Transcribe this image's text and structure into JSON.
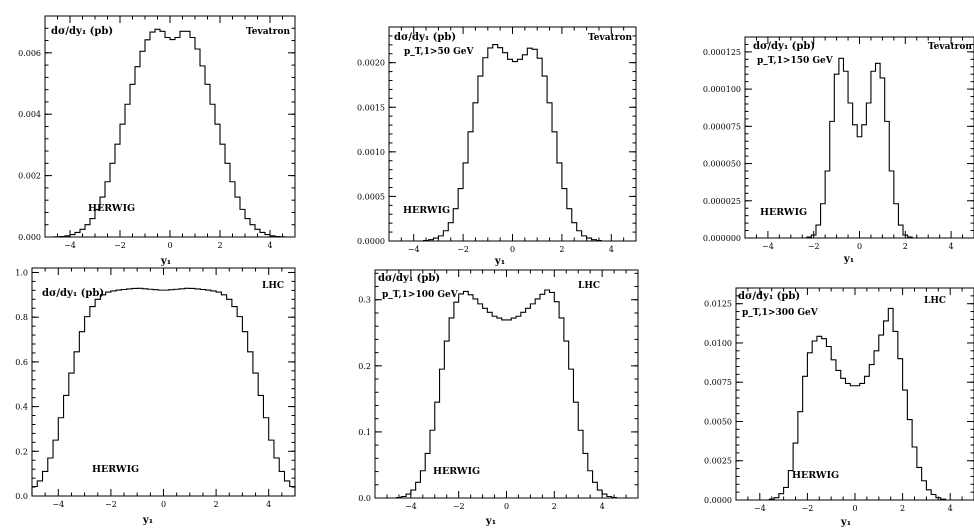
{
  "chart_data": [
    {
      "type": "line",
      "title": "dσ/dy₁ (pb)",
      "corner_label": "Tevatron",
      "cut_label": "",
      "generator_label": "HERWIG",
      "xlabel": "y₁",
      "xlim": [
        -5,
        5
      ],
      "ylim": [
        0,
        0.0072
      ],
      "xticks": [
        -4,
        -2,
        0,
        2,
        4
      ],
      "yticks": [
        0,
        0.002,
        0.004,
        0.006
      ],
      "ytick_labels": [
        "0.000",
        "0.002",
        "0.004",
        "0.006"
      ],
      "profile": [
        [
          -4.6,
          0
        ],
        [
          -4.2,
          2e-05
        ],
        [
          -3.8,
          0.0001
        ],
        [
          -3.4,
          0.0003
        ],
        [
          -3.0,
          0.0007
        ],
        [
          -2.6,
          0.0015
        ],
        [
          -2.2,
          0.0027
        ],
        [
          -1.8,
          0.004
        ],
        [
          -1.4,
          0.0053
        ],
        [
          -1.0,
          0.0063
        ],
        [
          -0.6,
          0.0068
        ],
        [
          -0.3,
          0.0067
        ],
        [
          0,
          0.0064
        ],
        [
          0.3,
          0.0065
        ],
        [
          0.6,
          0.0068
        ],
        [
          1.0,
          0.0064
        ],
        [
          1.4,
          0.0053
        ],
        [
          1.8,
          0.004
        ],
        [
          2.2,
          0.0027
        ],
        [
          2.6,
          0.0015
        ],
        [
          3.0,
          0.0007
        ],
        [
          3.4,
          0.0003
        ],
        [
          3.8,
          0.0001
        ],
        [
          4.2,
          2e-05
        ],
        [
          4.6,
          0
        ]
      ]
    },
    {
      "type": "line",
      "title": "dσ/dy₁ (pb)",
      "corner_label": "Tevatron",
      "cut_label": "p_T,1>50 GeV",
      "generator_label": "HERWIG",
      "xlabel": "y₁",
      "xlim": [
        -5,
        5
      ],
      "ylim": [
        0,
        0.0024
      ],
      "xticks": [
        -4,
        -2,
        0,
        2,
        4
      ],
      "yticks": [
        0,
        0.0005,
        0.001,
        0.0015,
        0.002
      ],
      "ytick_labels": [
        "0.0000",
        "0.0005",
        "0.0010",
        "0.0015",
        "0.0020"
      ],
      "profile": [
        [
          -3.6,
          0
        ],
        [
          -3.2,
          2e-05
        ],
        [
          -2.8,
          7e-05
        ],
        [
          -2.4,
          0.00025
        ],
        [
          -2.0,
          0.0007
        ],
        [
          -1.6,
          0.0014
        ],
        [
          -1.2,
          0.002
        ],
        [
          -0.8,
          0.00222
        ],
        [
          -0.4,
          0.00215
        ],
        [
          0,
          0.002
        ],
        [
          0.4,
          0.00205
        ],
        [
          0.8,
          0.0022
        ],
        [
          1.2,
          0.002
        ],
        [
          1.6,
          0.0014
        ],
        [
          2.0,
          0.0007
        ],
        [
          2.4,
          0.00025
        ],
        [
          2.8,
          7e-05
        ],
        [
          3.2,
          2e-05
        ],
        [
          3.6,
          0
        ]
      ]
    },
    {
      "type": "line",
      "title": "dσ/dy₁ (pb)",
      "corner_label": "Tevatron",
      "cut_label": "p_T,1>150 GeV",
      "generator_label": "HERWIG",
      "xlabel": "y₁",
      "xlim": [
        -5,
        5
      ],
      "ylim": [
        0,
        0.000135
      ],
      "xticks": [
        -4,
        -2,
        0,
        2,
        4
      ],
      "yticks": [
        0,
        2.5e-05,
        5e-05,
        7.5e-05,
        0.0001,
        0.000125
      ],
      "ytick_labels": [
        "0.000000",
        "0.000025",
        "0.000050",
        "0.000075",
        "0.000100",
        "0.000125"
      ],
      "profile": [
        [
          -2.3,
          0
        ],
        [
          -2.0,
          2e-06
        ],
        [
          -1.7,
          1.2e-05
        ],
        [
          -1.4,
          4.5e-05
        ],
        [
          -1.1,
          9.5e-05
        ],
        [
          -0.9,
          0.000125
        ],
        [
          -0.6,
          0.000112
        ],
        [
          -0.3,
          8e-05
        ],
        [
          0,
          6.8e-05
        ],
        [
          0.3,
          8e-05
        ],
        [
          0.6,
          0.000112
        ],
        [
          0.9,
          0.00012
        ],
        [
          1.1,
          9.5e-05
        ],
        [
          1.4,
          4.5e-05
        ],
        [
          1.7,
          1.2e-05
        ],
        [
          2.0,
          2e-06
        ],
        [
          2.3,
          0
        ]
      ]
    },
    {
      "type": "line",
      "title": "dσ/dy₁ (pb)",
      "corner_label": "LHC",
      "cut_label": "",
      "generator_label": "HERWIG",
      "xlabel": "y₁",
      "xlim": [
        -5,
        5
      ],
      "ylim": [
        0,
        1.02
      ],
      "xticks": [
        -4,
        -2,
        0,
        2,
        4
      ],
      "yticks": [
        0,
        0.2,
        0.4,
        0.6,
        0.8,
        1.0
      ],
      "ytick_labels": [
        "0.0",
        "0.2",
        "0.4",
        "0.6",
        "0.8",
        "1.0"
      ],
      "profile": [
        [
          -5.0,
          0.03
        ],
        [
          -4.6,
          0.08
        ],
        [
          -4.2,
          0.2
        ],
        [
          -3.8,
          0.4
        ],
        [
          -3.4,
          0.6
        ],
        [
          -3.0,
          0.78
        ],
        [
          -2.6,
          0.87
        ],
        [
          -2.2,
          0.91
        ],
        [
          -1.8,
          0.92
        ],
        [
          -1.0,
          0.93
        ],
        [
          0,
          0.92
        ],
        [
          1.0,
          0.93
        ],
        [
          1.8,
          0.92
        ],
        [
          2.2,
          0.91
        ],
        [
          2.6,
          0.87
        ],
        [
          3.0,
          0.78
        ],
        [
          3.4,
          0.6
        ],
        [
          3.8,
          0.4
        ],
        [
          4.2,
          0.2
        ],
        [
          4.6,
          0.08
        ],
        [
          5.0,
          0.03
        ]
      ]
    },
    {
      "type": "line",
      "title": "dσ/dy₁ (pb)",
      "corner_label": "LHC",
      "cut_label": "p_T,1>100 GeV",
      "generator_label": "HERWIG",
      "xlabel": "y₁",
      "xlim": [
        -5.5,
        5.5
      ],
      "ylim": [
        0,
        0.345
      ],
      "xticks": [
        -4,
        -2,
        0,
        2,
        4
      ],
      "yticks": [
        0,
        0.1,
        0.2,
        0.3
      ],
      "ytick_labels": [
        "0.0",
        "0.1",
        "0.2",
        "0.3"
      ],
      "profile": [
        [
          -4.6,
          0
        ],
        [
          -4.2,
          0.003
        ],
        [
          -3.8,
          0.015
        ],
        [
          -3.4,
          0.05
        ],
        [
          -3.0,
          0.12
        ],
        [
          -2.6,
          0.22
        ],
        [
          -2.2,
          0.29
        ],
        [
          -1.8,
          0.315
        ],
        [
          -1.4,
          0.305
        ],
        [
          -1.0,
          0.29
        ],
        [
          -0.5,
          0.275
        ],
        [
          0,
          0.268
        ],
        [
          0.5,
          0.275
        ],
        [
          1.0,
          0.29
        ],
        [
          1.4,
          0.305
        ],
        [
          1.8,
          0.318
        ],
        [
          2.2,
          0.29
        ],
        [
          2.6,
          0.22
        ],
        [
          3.0,
          0.12
        ],
        [
          3.4,
          0.05
        ],
        [
          3.8,
          0.015
        ],
        [
          4.2,
          0.003
        ],
        [
          4.6,
          0
        ]
      ]
    },
    {
      "type": "line",
      "title": "dσ/dy₁ (pb)",
      "corner_label": "LHC",
      "cut_label": "p_T,1>300 GeV",
      "generator_label": "HERWIG",
      "xlabel": "y₁",
      "xlim": [
        -5,
        5
      ],
      "ylim": [
        0,
        0.0135
      ],
      "xticks": [
        -4,
        -2,
        0,
        2,
        4
      ],
      "yticks": [
        0,
        0.0025,
        0.005,
        0.0075,
        0.01,
        0.0125
      ],
      "ytick_labels": [
        "0.0000",
        "0.0025",
        "0.0050",
        "0.0075",
        "0.0100",
        "0.0125"
      ],
      "profile": [
        [
          -3.6,
          0
        ],
        [
          -3.2,
          0.0002
        ],
        [
          -2.8,
          0.001
        ],
        [
          -2.4,
          0.0045
        ],
        [
          -2.0,
          0.009
        ],
        [
          -1.6,
          0.0105
        ],
        [
          -1.2,
          0.0102
        ],
        [
          -0.8,
          0.0085
        ],
        [
          -0.4,
          0.0075
        ],
        [
          0,
          0.0072
        ],
        [
          0.4,
          0.0075
        ],
        [
          0.8,
          0.009
        ],
        [
          1.2,
          0.011
        ],
        [
          1.5,
          0.0122
        ],
        [
          1.8,
          0.01
        ],
        [
          2.2,
          0.006
        ],
        [
          2.6,
          0.0025
        ],
        [
          3.0,
          0.0008
        ],
        [
          3.4,
          0.0002
        ],
        [
          3.8,
          0
        ]
      ]
    }
  ]
}
